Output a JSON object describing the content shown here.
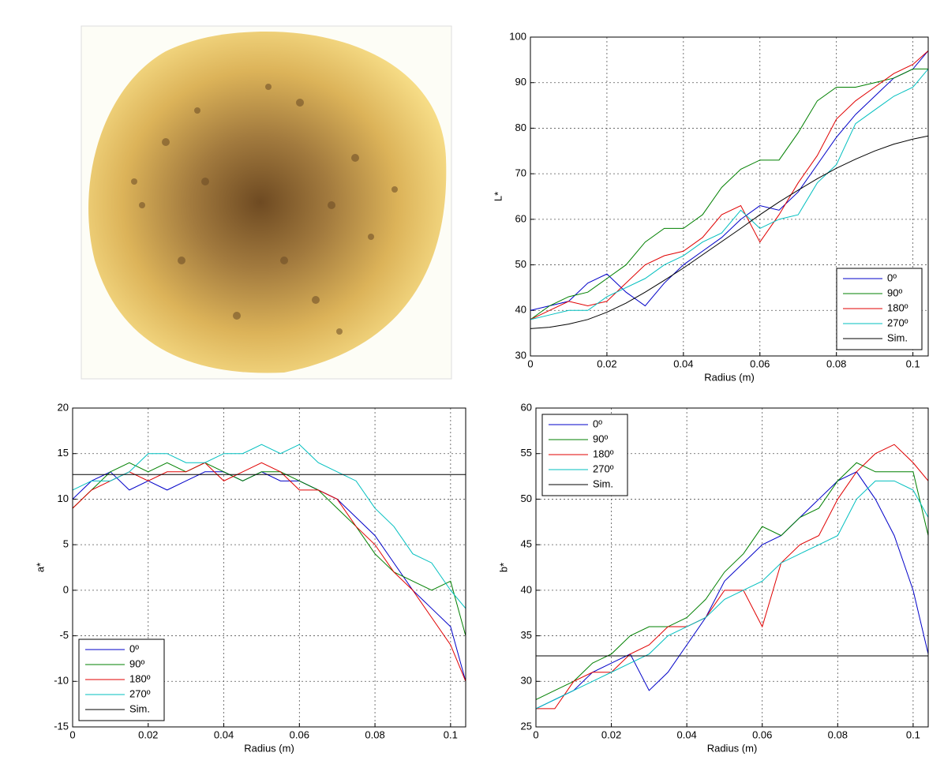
{
  "chart_data": [
    {
      "type": "line",
      "xlabel": "Radius (m)",
      "ylabel": "L*",
      "x": [
        0,
        0.005,
        0.01,
        0.015,
        0.02,
        0.025,
        0.03,
        0.035,
        0.04,
        0.045,
        0.05,
        0.055,
        0.06,
        0.065,
        0.07,
        0.075,
        0.08,
        0.085,
        0.09,
        0.095,
        0.1,
        0.104
      ],
      "xlim": [
        0,
        0.104
      ],
      "xticks": [
        0,
        0.02,
        0.04,
        0.06,
        0.08,
        0.1
      ],
      "ylim": [
        30,
        100
      ],
      "yticks": [
        30,
        40,
        50,
        60,
        70,
        80,
        90,
        100
      ],
      "grid": true,
      "legend": "lower right",
      "series": [
        {
          "name": "0º",
          "color": "#0000c8",
          "values": [
            40,
            41,
            42,
            46,
            48,
            44,
            41,
            46,
            50,
            53,
            56,
            60,
            63,
            62,
            66,
            72,
            78,
            83,
            87,
            91,
            93,
            97
          ]
        },
        {
          "name": "90º",
          "color": "#008000",
          "values": [
            38,
            41,
            43,
            44,
            47,
            50,
            55,
            58,
            58,
            61,
            67,
            71,
            73,
            73,
            79,
            86,
            89,
            89,
            90,
            91,
            93,
            93
          ]
        },
        {
          "name": "180º",
          "color": "#e00000",
          "values": [
            38,
            40,
            42,
            41,
            42,
            46,
            50,
            52,
            53,
            56,
            61,
            63,
            55,
            61,
            68,
            74,
            82,
            86,
            89,
            92,
            94,
            97
          ]
        },
        {
          "name": "270º",
          "color": "#00bfbf",
          "values": [
            38,
            39,
            40,
            40,
            43,
            45,
            47,
            50,
            52,
            55,
            57,
            62,
            58,
            60,
            61,
            68,
            72,
            81,
            84,
            87,
            89,
            93
          ]
        },
        {
          "name": "Sim.",
          "color": "#000000",
          "values": [
            36,
            36.3,
            37,
            38,
            39.6,
            41.6,
            44,
            46.6,
            49.3,
            52.2,
            55.1,
            58,
            61,
            63.8,
            66.4,
            68.9,
            71.2,
            73.2,
            75,
            76.5,
            77.6,
            78.3
          ]
        }
      ]
    },
    {
      "type": "line",
      "xlabel": "Radius (m)",
      "ylabel": "a*",
      "x": [
        0,
        0.005,
        0.01,
        0.015,
        0.02,
        0.025,
        0.03,
        0.035,
        0.04,
        0.045,
        0.05,
        0.055,
        0.06,
        0.065,
        0.07,
        0.075,
        0.08,
        0.085,
        0.09,
        0.095,
        0.1,
        0.104
      ],
      "xlim": [
        0,
        0.104
      ],
      "xticks": [
        0,
        0.02,
        0.04,
        0.06,
        0.08,
        0.1
      ],
      "ylim": [
        -15,
        20
      ],
      "yticks": [
        -15,
        -10,
        -5,
        0,
        5,
        10,
        15,
        20
      ],
      "grid": true,
      "legend": "lower left",
      "series": [
        {
          "name": "0º",
          "color": "#0000c8",
          "values": [
            10,
            12,
            13,
            11,
            12,
            11,
            12,
            13,
            13,
            12,
            13,
            12,
            12,
            11,
            10,
            8,
            6,
            3,
            0,
            -2,
            -4,
            -10
          ]
        },
        {
          "name": "90º",
          "color": "#008000",
          "values": [
            9,
            11,
            13,
            14,
            13,
            14,
            13,
            14,
            13,
            12,
            13,
            13,
            12,
            11,
            9,
            7,
            4,
            2,
            1,
            0,
            1,
            -5
          ]
        },
        {
          "name": "180º",
          "color": "#e00000",
          "values": [
            9,
            11,
            12,
            13,
            12,
            13,
            13,
            14,
            12,
            13,
            14,
            13,
            11,
            11,
            10,
            7,
            5,
            2,
            0,
            -3,
            -6,
            -10
          ]
        },
        {
          "name": "270º",
          "color": "#00bfbf",
          "values": [
            11,
            12,
            12,
            13,
            15,
            15,
            14,
            14,
            15,
            15,
            16,
            15,
            16,
            14,
            13,
            12,
            9,
            7,
            4,
            3,
            0,
            -2
          ]
        },
        {
          "name": "Sim.",
          "color": "#000000",
          "values": [
            12.7,
            12.7,
            12.7,
            12.7,
            12.7,
            12.7,
            12.7,
            12.7,
            12.7,
            12.7,
            12.7,
            12.7,
            12.7,
            12.7,
            12.7,
            12.7,
            12.7,
            12.7,
            12.7,
            12.7,
            12.7,
            12.7
          ]
        }
      ]
    },
    {
      "type": "line",
      "xlabel": "Radius (m)",
      "ylabel": "b*",
      "x": [
        0,
        0.005,
        0.01,
        0.015,
        0.02,
        0.025,
        0.03,
        0.035,
        0.04,
        0.045,
        0.05,
        0.055,
        0.06,
        0.065,
        0.07,
        0.075,
        0.08,
        0.085,
        0.09,
        0.095,
        0.1,
        0.104
      ],
      "xlim": [
        0,
        0.104
      ],
      "xticks": [
        0,
        0.02,
        0.04,
        0.06,
        0.08,
        0.1
      ],
      "ylim": [
        25,
        60
      ],
      "yticks": [
        25,
        30,
        35,
        40,
        45,
        50,
        55,
        60
      ],
      "grid": true,
      "legend": "upper left",
      "series": [
        {
          "name": "0º",
          "color": "#0000c8",
          "values": [
            27,
            28,
            29,
            31,
            32,
            33,
            29,
            31,
            34,
            37,
            41,
            43,
            45,
            46,
            48,
            50,
            52,
            53,
            50,
            46,
            40,
            33
          ]
        },
        {
          "name": "90º",
          "color": "#008000",
          "values": [
            28,
            29,
            30,
            32,
            33,
            35,
            36,
            36,
            37,
            39,
            42,
            44,
            47,
            46,
            48,
            49,
            52,
            54,
            53,
            53,
            53,
            46
          ]
        },
        {
          "name": "180º",
          "color": "#e00000",
          "values": [
            27,
            27,
            30,
            31,
            31,
            33,
            34,
            36,
            36,
            37,
            40,
            40,
            36,
            43,
            45,
            46,
            50,
            53,
            55,
            56,
            54,
            52
          ]
        },
        {
          "name": "270º",
          "color": "#00bfbf",
          "values": [
            27,
            28,
            29,
            30,
            31,
            32,
            33,
            35,
            36,
            37,
            39,
            40,
            41,
            43,
            44,
            45,
            46,
            50,
            52,
            52,
            51,
            48
          ]
        },
        {
          "name": "Sim.",
          "color": "#000000",
          "values": [
            32.8,
            32.8,
            32.8,
            32.8,
            32.8,
            32.8,
            32.8,
            32.8,
            32.8,
            32.8,
            32.8,
            32.8,
            32.8,
            32.8,
            32.8,
            32.8,
            32.8,
            32.8,
            32.8,
            32.8,
            32.8,
            32.8
          ]
        }
      ]
    }
  ]
}
